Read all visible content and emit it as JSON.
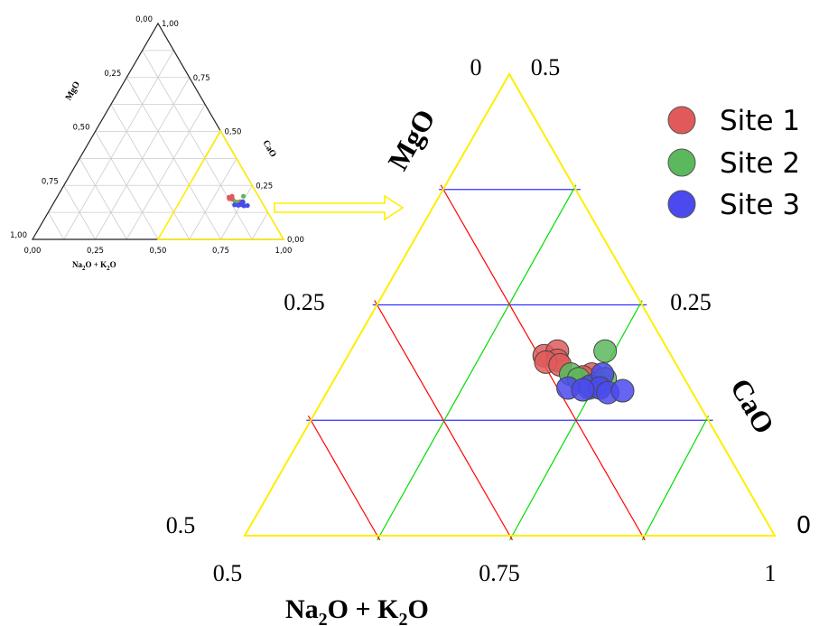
{
  "chart_data": [
    {
      "type": "scatter",
      "subtype": "ternary",
      "panel": "overview",
      "axes": {
        "bottom": {
          "label_main": "Na",
          "label_sub1": "2",
          "label_mid": "O + K",
          "label_sub2": "2",
          "label_end": "O",
          "ticks": [
            "0,00",
            "0,25",
            "0,50",
            "0,75",
            "1,00"
          ]
        },
        "left": {
          "label": "MgO",
          "ticks": [
            "0,00",
            "0,25",
            "0,50",
            "0,75",
            "1,00"
          ]
        },
        "right": {
          "label": "CaO",
          "ticks": [
            "1,00",
            "0,75",
            "0,50",
            "0,25",
            "0,00"
          ]
        }
      },
      "highlight_region_color": "#f5e663",
      "grid": true
    },
    {
      "type": "scatter",
      "subtype": "ternary",
      "panel": "zoomed",
      "axes": {
        "bottom": {
          "label_main": "Na",
          "label_sub1": "2",
          "label_mid": "O + K",
          "label_sub2": "2",
          "label_end": "O",
          "ticks": [
            "0.5",
            "0.75",
            "1"
          ],
          "range": [
            0.5,
            1
          ]
        },
        "left": {
          "label": "MgO",
          "ticks": [
            "0",
            "0.25",
            "0.5"
          ],
          "range": [
            0,
            0.5
          ]
        },
        "right": {
          "label": "CaO",
          "ticks": [
            "0.5",
            "0.25",
            "0"
          ],
          "range": [
            0,
            0.5
          ]
        }
      },
      "grid": true,
      "grid_colors": {
        "MgO": "#3333ff",
        "CaO": "#00dd00",
        "Na2O_K2O": "#ff0000"
      },
      "frame_color": "#ffee00",
      "legend_position": "top-right",
      "series": [
        {
          "name": "Site 1",
          "color": "#e15a5a",
          "points": [
            {
              "na2o_k2o": 0.685,
              "cao": 0.195
            },
            {
              "na2o_k2o": 0.695,
              "cao": 0.2
            },
            {
              "na2o_k2o": 0.7,
              "cao": 0.19
            },
            {
              "na2o_k2o": 0.69,
              "cao": 0.188
            },
            {
              "na2o_k2o": 0.705,
              "cao": 0.185
            },
            {
              "na2o_k2o": 0.74,
              "cao": 0.175
            },
            {
              "na2o_k2o": 0.733,
              "cao": 0.172
            }
          ]
        },
        {
          "name": "Site 2",
          "color": "#5cb85c",
          "points": [
            {
              "na2o_k2o": 0.74,
              "cao": 0.2
            },
            {
              "na2o_k2o": 0.72,
              "cao": 0.175
            },
            {
              "na2o_k2o": 0.73,
              "cao": 0.17
            },
            {
              "na2o_k2o": 0.75,
              "cao": 0.165
            },
            {
              "na2o_k2o": 0.755,
              "cao": 0.17
            },
            {
              "na2o_k2o": 0.745,
              "cao": 0.16
            }
          ]
        },
        {
          "name": "Site 3",
          "color": "#4a4aee",
          "points": [
            {
              "na2o_k2o": 0.725,
              "cao": 0.16
            },
            {
              "na2o_k2o": 0.745,
              "cao": 0.162
            },
            {
              "na2o_k2o": 0.75,
              "cao": 0.175
            },
            {
              "na2o_k2o": 0.755,
              "cao": 0.16
            },
            {
              "na2o_k2o": 0.765,
              "cao": 0.155
            },
            {
              "na2o_k2o": 0.778,
              "cao": 0.157
            },
            {
              "na2o_k2o": 0.74,
              "cao": 0.158
            }
          ]
        }
      ]
    }
  ]
}
